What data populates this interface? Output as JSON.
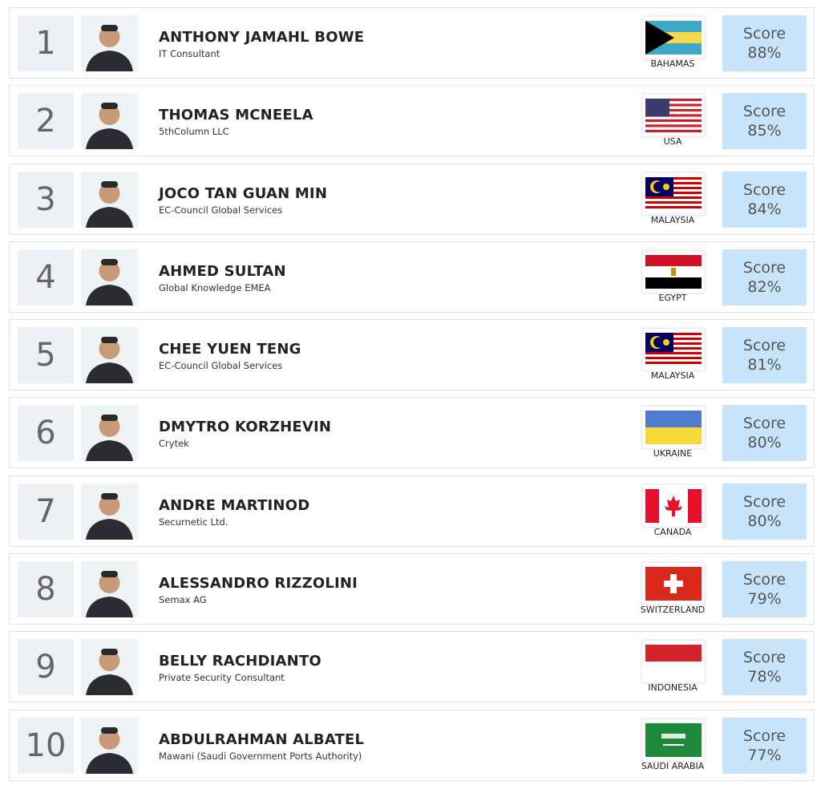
{
  "score_label": "Score",
  "colors": {
    "rank_bg": "#edf1f5",
    "score_bg": "#c8e4fb"
  },
  "entries": [
    {
      "rank": "1",
      "name": "ANTHONY JAMAHL BOWE",
      "org": "IT Consultant",
      "country": "BAHAMAS",
      "flag": "bahamas-flag",
      "score": "88%"
    },
    {
      "rank": "2",
      "name": "THOMAS MCNEELA",
      "org": "5thColumn LLC",
      "country": "USA",
      "flag": "usa-flag",
      "score": "85%"
    },
    {
      "rank": "3",
      "name": "JOCO TAN GUAN MIN",
      "org": "EC-Council Global Services",
      "country": "MALAYSIA",
      "flag": "malaysia-flag",
      "score": "84%"
    },
    {
      "rank": "4",
      "name": "AHMED SULTAN",
      "org": "Global Knowledge EMEA",
      "country": "EGYPT",
      "flag": "egypt-flag",
      "score": "82%"
    },
    {
      "rank": "5",
      "name": "CHEE YUEN TENG",
      "org": "EC-Council Global Services",
      "country": "MALAYSIA",
      "flag": "malaysia-flag",
      "score": "81%"
    },
    {
      "rank": "6",
      "name": "DMYTRO KORZHEVIN",
      "org": "Crytek",
      "country": "UKRAINE",
      "flag": "ukraine-flag",
      "score": "80%"
    },
    {
      "rank": "7",
      "name": "ANDRE MARTINOD",
      "org": "Securnetic Ltd.",
      "country": "CANADA",
      "flag": "canada-flag",
      "score": "80%"
    },
    {
      "rank": "8",
      "name": "ALESSANDRO RIZZOLINI",
      "org": "Semax AG",
      "country": "SWITZERLAND",
      "flag": "switzerland-flag",
      "score": "79%"
    },
    {
      "rank": "9",
      "name": "BELLY RACHDIANTO",
      "org": "Private Security Consultant",
      "country": "INDONESIA",
      "flag": "indonesia-flag",
      "score": "78%"
    },
    {
      "rank": "10",
      "name": "ABDULRAHMAN ALBATEL",
      "org": "Mawani (Saudi Government Ports Authority)",
      "country": "SAUDI ARABIA",
      "flag": "saudi-arabia-flag",
      "score": "77%"
    }
  ]
}
